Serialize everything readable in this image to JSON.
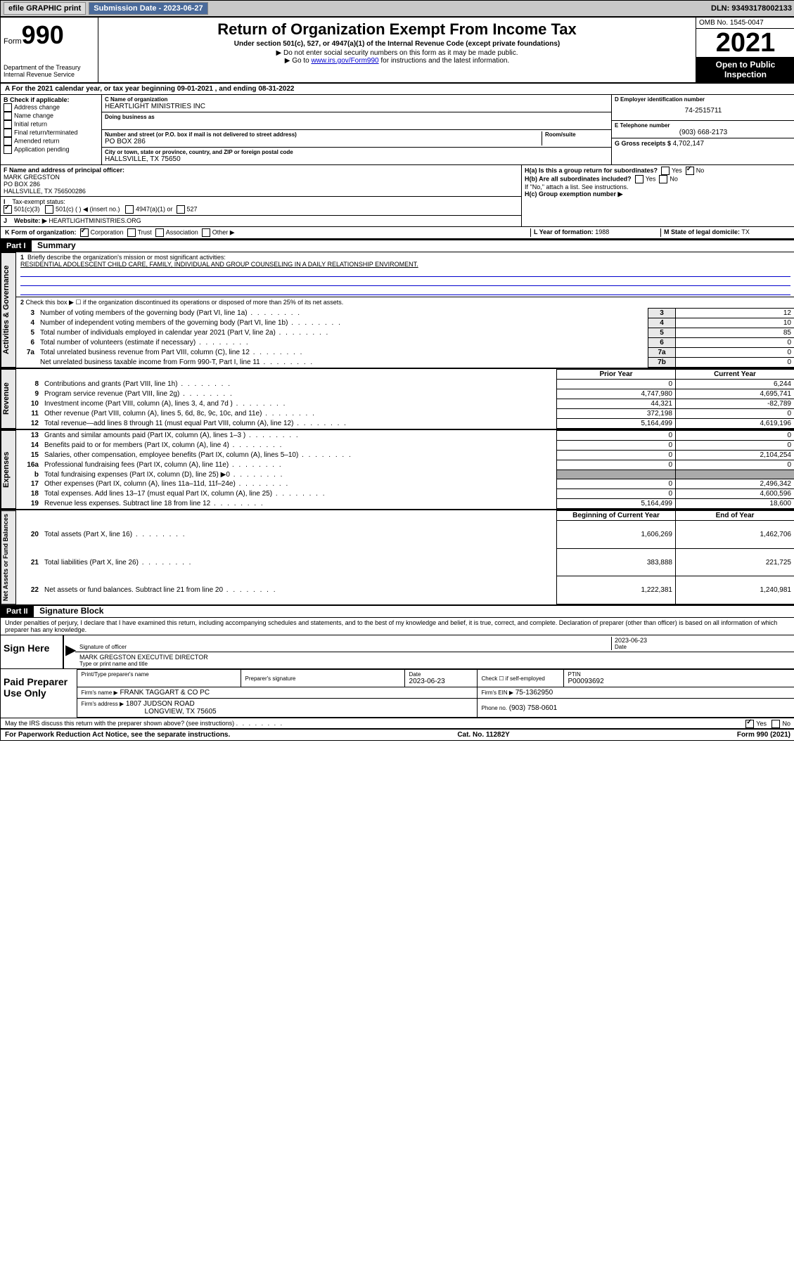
{
  "top": {
    "efile": "efile GRAPHIC print",
    "submission": "Submission Date - 2023-06-27",
    "dln": "DLN: 93493178002133"
  },
  "header": {
    "form_label": "Form",
    "form_num": "990",
    "dept": "Department of the Treasury\nInternal Revenue Service",
    "title": "Return of Organization Exempt From Income Tax",
    "subtitle": "Under section 501(c), 527, or 4947(a)(1) of the Internal Revenue Code (except private foundations)",
    "instr1": "Do not enter social security numbers on this form as it may be made public.",
    "instr2_a": "Go to ",
    "instr2_link": "www.irs.gov/Form990",
    "instr2_b": " for instructions and the latest information.",
    "omb": "OMB No. 1545-0047",
    "year": "2021",
    "open": "Open to Public Inspection"
  },
  "line_a": "A For the 2021 calendar year, or tax year beginning 09-01-2021   , and ending 08-31-2022",
  "section_b": {
    "label": "B Check if applicable:",
    "opts": [
      "Address change",
      "Name change",
      "Initial return",
      "Final return/terminated",
      "Amended return",
      "Application pending"
    ],
    "c_label": "C Name of organization",
    "c_val": "HEARTLIGHT MINISTRIES INC",
    "dba_label": "Doing business as",
    "addr_label": "Number and street (or P.O. box if mail is not delivered to street address)",
    "room_label": "Room/suite",
    "addr_val": "PO BOX 286",
    "city_label": "City or town, state or province, country, and ZIP or foreign postal code",
    "city_val": "HALLSVILLE, TX  75650",
    "d_label": "D Employer identification number",
    "d_val": "74-2515711",
    "e_label": "E Telephone number",
    "e_val": "(903) 668-2173",
    "g_label": "G Gross receipts $",
    "g_val": "4,702,147"
  },
  "section_f": {
    "f_label": "F Name and address of principal officer:",
    "f_name": "MARK GREGSTON",
    "f_addr1": "PO BOX 286",
    "f_addr2": "HALLSVILLE, TX  756500286",
    "i_label": "Tax-exempt status:",
    "i_501c3": "501(c)(3)",
    "i_501c": "501(c) (  ) ◀ (insert no.)",
    "i_4947": "4947(a)(1) or",
    "i_527": "527",
    "j_label": "Website: ▶",
    "j_val": "HEARTLIGHTMINISTRIES.ORG",
    "ha_label": "H(a)  Is this a group return for subordinates?",
    "hb_label": "H(b)  Are all subordinates included?",
    "hb_note": "If \"No,\" attach a list. See instructions.",
    "hc_label": "H(c)  Group exemption number ▶",
    "yes": "Yes",
    "no": "No"
  },
  "section_k": {
    "k_label": "K Form of organization:",
    "opts": [
      "Corporation",
      "Trust",
      "Association",
      "Other ▶"
    ],
    "l_label": "L Year of formation:",
    "l_val": "1988",
    "m_label": "M State of legal domicile:",
    "m_val": "TX"
  },
  "part1": {
    "header": "Part I",
    "title": "Summary",
    "q1": "Briefly describe the organization's mission or most significant activities:",
    "mission": "RESIDENTIAL ADOLESCENT CHILD CARE, FAMILY, INDIVIDUAL AND GROUP COUNSELING IN A DAILY RELATIONSHIP ENVIROMENT.",
    "q2": "Check this box ▶ ☐  if the organization discontinued its operations or disposed of more than 25% of its net assets.",
    "rows_gov": [
      {
        "n": "3",
        "d": "Number of voting members of the governing body (Part VI, line 1a)",
        "ln": "3",
        "v": "12"
      },
      {
        "n": "4",
        "d": "Number of independent voting members of the governing body (Part VI, line 1b)",
        "ln": "4",
        "v": "10"
      },
      {
        "n": "5",
        "d": "Total number of individuals employed in calendar year 2021 (Part V, line 2a)",
        "ln": "5",
        "v": "85"
      },
      {
        "n": "6",
        "d": "Total number of volunteers (estimate if necessary)",
        "ln": "6",
        "v": "0"
      },
      {
        "n": "7a",
        "d": "Total unrelated business revenue from Part VIII, column (C), line 12",
        "ln": "7a",
        "v": "0"
      },
      {
        "n": "",
        "d": "Net unrelated business taxable income from Form 990-T, Part I, line 11",
        "ln": "7b",
        "v": "0"
      }
    ],
    "col_prior": "Prior Year",
    "col_current": "Current Year",
    "rows_rev": [
      {
        "n": "8",
        "d": "Contributions and grants (Part VIII, line 1h)",
        "p": "0",
        "c": "6,244"
      },
      {
        "n": "9",
        "d": "Program service revenue (Part VIII, line 2g)",
        "p": "4,747,980",
        "c": "4,695,741"
      },
      {
        "n": "10",
        "d": "Investment income (Part VIII, column (A), lines 3, 4, and 7d )",
        "p": "44,321",
        "c": "-82,789"
      },
      {
        "n": "11",
        "d": "Other revenue (Part VIII, column (A), lines 5, 6d, 8c, 9c, 10c, and 11e)",
        "p": "372,198",
        "c": "0"
      },
      {
        "n": "12",
        "d": "Total revenue—add lines 8 through 11 (must equal Part VIII, column (A), line 12)",
        "p": "5,164,499",
        "c": "4,619,196"
      }
    ],
    "rows_exp": [
      {
        "n": "13",
        "d": "Grants and similar amounts paid (Part IX, column (A), lines 1–3 )",
        "p": "0",
        "c": "0"
      },
      {
        "n": "14",
        "d": "Benefits paid to or for members (Part IX, column (A), line 4)",
        "p": "0",
        "c": "0"
      },
      {
        "n": "15",
        "d": "Salaries, other compensation, employee benefits (Part IX, column (A), lines 5–10)",
        "p": "0",
        "c": "2,104,254"
      },
      {
        "n": "16a",
        "d": "Professional fundraising fees (Part IX, column (A), line 11e)",
        "p": "0",
        "c": "0"
      },
      {
        "n": "b",
        "d": "Total fundraising expenses (Part IX, column (D), line 25) ▶0",
        "p": "grey",
        "c": "grey"
      },
      {
        "n": "17",
        "d": "Other expenses (Part IX, column (A), lines 11a–11d, 11f–24e)",
        "p": "0",
        "c": "2,496,342"
      },
      {
        "n": "18",
        "d": "Total expenses. Add lines 13–17 (must equal Part IX, column (A), line 25)",
        "p": "0",
        "c": "4,600,596"
      },
      {
        "n": "19",
        "d": "Revenue less expenses. Subtract line 18 from line 12",
        "p": "5,164,499",
        "c": "18,600"
      }
    ],
    "col_begin": "Beginning of Current Year",
    "col_end": "End of Year",
    "rows_net": [
      {
        "n": "20",
        "d": "Total assets (Part X, line 16)",
        "p": "1,606,269",
        "c": "1,462,706"
      },
      {
        "n": "21",
        "d": "Total liabilities (Part X, line 26)",
        "p": "383,888",
        "c": "221,725"
      },
      {
        "n": "22",
        "d": "Net assets or fund balances. Subtract line 21 from line 20",
        "p": "1,222,381",
        "c": "1,240,981"
      }
    ],
    "vert_gov": "Activities & Governance",
    "vert_rev": "Revenue",
    "vert_exp": "Expenses",
    "vert_net": "Net Assets or Fund Balances"
  },
  "part2": {
    "header": "Part II",
    "title": "Signature Block",
    "decl": "Under penalties of perjury, I declare that I have examined this return, including accompanying schedules and statements, and to the best of my knowledge and belief, it is true, correct, and complete. Declaration of preparer (other than officer) is based on all information of which preparer has any knowledge.",
    "sign_here": "Sign Here",
    "sig_officer": "Signature of officer",
    "sig_date": "Date",
    "sig_date_val": "2023-06-23",
    "officer_name": "MARK GREGSTON  EXECUTIVE DIRECTOR",
    "officer_label": "Type or print name and title",
    "paid": "Paid Preparer Use Only",
    "prep_name_label": "Print/Type preparer's name",
    "prep_sig_label": "Preparer's signature",
    "prep_date_label": "Date",
    "prep_date_val": "2023-06-23",
    "prep_check": "Check ☐ if self-employed",
    "ptin_label": "PTIN",
    "ptin_val": "P00093692",
    "firm_name_label": "Firm's name    ▶",
    "firm_name": "FRANK TAGGART & CO PC",
    "firm_ein_label": "Firm's EIN ▶",
    "firm_ein": "75-1362950",
    "firm_addr_label": "Firm's address ▶",
    "firm_addr1": "1807 JUDSON ROAD",
    "firm_addr2": "LONGVIEW, TX  75605",
    "firm_phone_label": "Phone no.",
    "firm_phone": "(903) 758-0601",
    "discuss": "May the IRS discuss this return with the preparer shown above? (see instructions)"
  },
  "footer": {
    "paperwork": "For Paperwork Reduction Act Notice, see the separate instructions.",
    "cat": "Cat. No. 11282Y",
    "form": "Form 990 (2021)"
  }
}
